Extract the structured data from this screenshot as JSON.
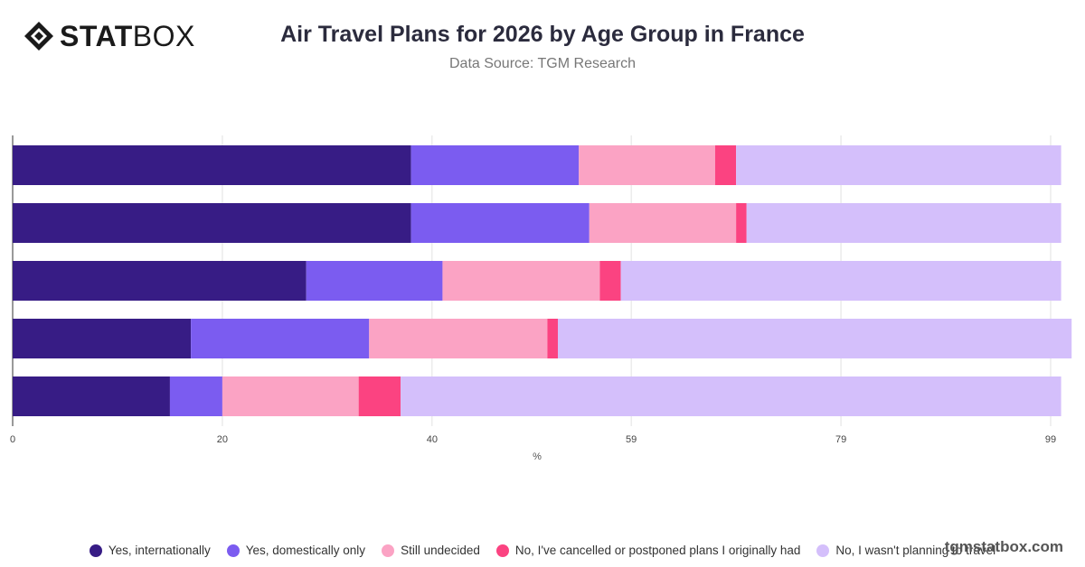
{
  "header": {
    "logo_text_bold": "STAT",
    "logo_text_light": "BOX",
    "title": "Air Travel Plans for 2026 by Age Group in France",
    "subtitle": "Data Source: TGM Research"
  },
  "footer": {
    "brand": "tgmstatbox.com"
  },
  "chart_data": {
    "type": "bar",
    "orientation": "horizontal",
    "stacked": true,
    "categories": [
      "",
      "",
      "",
      "",
      ""
    ],
    "series": [
      {
        "name": "Yes, internationally",
        "color": "#371c85",
        "values": [
          38,
          38,
          28,
          17,
          15
        ]
      },
      {
        "name": "Yes, domestically only",
        "color": "#7b5cf0",
        "values": [
          16,
          17,
          13,
          17,
          5
        ]
      },
      {
        "name": "Still undecided",
        "color": "#fba3c4",
        "values": [
          13,
          14,
          15,
          17,
          13
        ]
      },
      {
        "name": "No, I've cancelled or postponed plans I originally had",
        "color": "#fb4381",
        "values": [
          2,
          1,
          2,
          1,
          4
        ]
      },
      {
        "name": "No, I wasn't planning to travel",
        "color": "#d4bffb",
        "values": [
          31,
          30,
          42,
          49,
          63
        ]
      }
    ],
    "x_ticks": [
      "0",
      "20",
      "40",
      "59",
      "79",
      "99"
    ],
    "xlim": [
      0,
      99
    ],
    "xlabel": "%",
    "grid": true,
    "legend_position": "bottom"
  }
}
